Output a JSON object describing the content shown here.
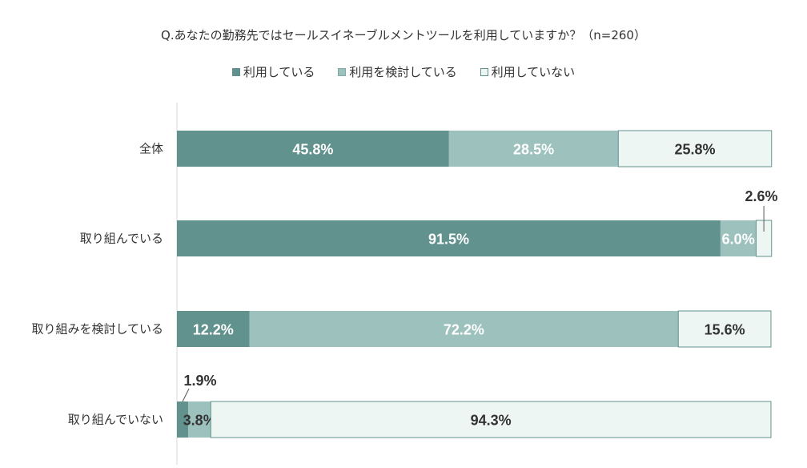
{
  "chart_data": {
    "type": "bar",
    "orientation": "horizontal",
    "stacked": true,
    "percent": true,
    "title": "Q.あなたの勤務先ではセールスイネーブルメントツールを利用していますか？（n=260）",
    "legend_position": "top",
    "categories": [
      "全体",
      "取り組んでいる",
      "取り組みを検討している",
      "取り組んでいない"
    ],
    "series": [
      {
        "name": "利用している",
        "color": "#62928D",
        "label_color": "#ffffff",
        "values": [
          45.8,
          91.5,
          12.2,
          1.9
        ],
        "labels": [
          "45.8%",
          "91.5%",
          "12.2%",
          "1.9%"
        ]
      },
      {
        "name": "利用を検討している",
        "color": "#9DC1BD",
        "label_color": "#ffffff",
        "values": [
          28.5,
          6.0,
          72.2,
          3.8
        ],
        "labels": [
          "28.5%",
          "6.0%",
          "72.2%",
          "3.8%"
        ]
      },
      {
        "name": "利用していない",
        "color": "#EEF6F3",
        "label_color": "#333333",
        "values": [
          25.8,
          2.6,
          15.6,
          94.3
        ],
        "labels": [
          "25.8%",
          "2.6%",
          "15.6%",
          "94.3%"
        ]
      }
    ],
    "callouts": [
      {
        "category": 1,
        "series": 2
      },
      {
        "category": 3,
        "series": 0
      }
    ],
    "xlim": [
      0,
      100
    ],
    "grid": false
  }
}
